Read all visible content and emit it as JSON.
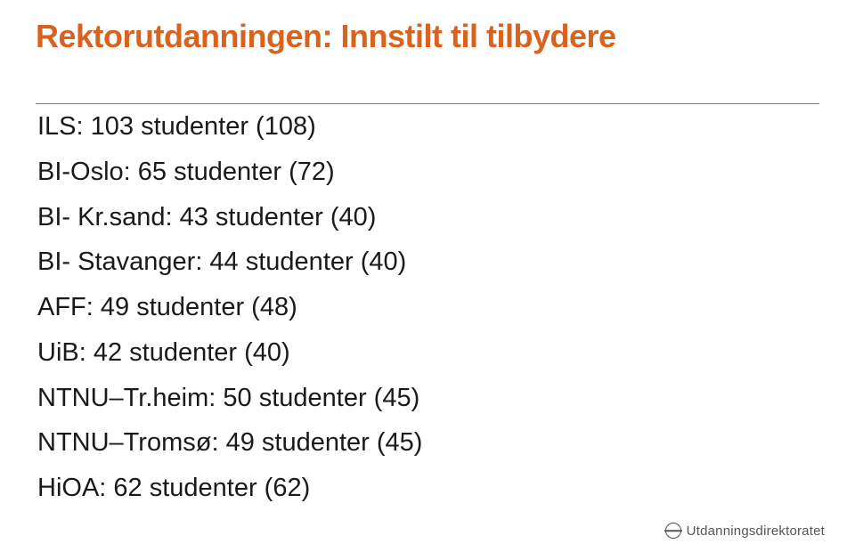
{
  "title": "Rektorutdanningen: Innstilt til tilbydere",
  "title_color": "#d9621f",
  "text_color": "#1a1a1a",
  "rule_color": "#7a7a7a",
  "background_color": "#ffffff",
  "title_fontsize": 36,
  "body_fontsize": 29,
  "rows": [
    "ILS: 103 studenter (108)",
    "BI-Oslo: 65 studenter (72)",
    "BI- Kr.sand: 43 studenter (40)",
    "BI- Stavanger: 44 studenter (40)",
    "AFF: 49 studenter (48)",
    "UiB:  42 studenter (40)",
    "NTNU–Tr.heim: 50 studenter (45)",
    "NTNU–Tromsø: 49 studenter (45)",
    "HiOA: 62 studenter (62)"
  ],
  "logo": {
    "text": "Utdanningsdirektoratet",
    "color": "#555555"
  }
}
